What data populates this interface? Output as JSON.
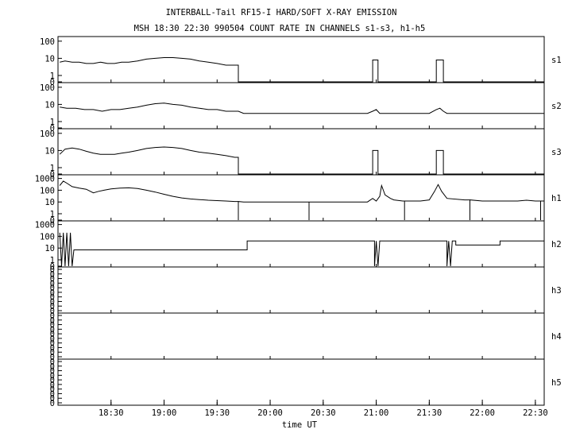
{
  "chart_data": {
    "type": "line",
    "title": "INTERBALL-Tail RF15-I HARD/SOFT X-RAY EMISSION",
    "subtitle": "MSH 18:30 22:30 990504  COUNT RATE IN CHANNELS s1-s3, h1-h5",
    "xlabel": "time UT",
    "x_range_minutes": [
      1080,
      1355
    ],
    "x_ticks": [
      "18:30",
      "19:00",
      "19:30",
      "20:00",
      "20:30",
      "21:00",
      "21:30",
      "22:00",
      "22:30"
    ],
    "x_tick_values": [
      1110,
      1140,
      1170,
      1200,
      1230,
      1260,
      1290,
      1320,
      1350
    ],
    "scale": "log",
    "panels": [
      {
        "name": "s1",
        "y_ticks": [
          "100",
          "10",
          "1",
          "0"
        ],
        "y_tick_values": [
          100,
          10,
          1,
          0
        ],
        "ylim": [
          0,
          150
        ],
        "points": [
          [
            1081,
            6
          ],
          [
            1084,
            7
          ],
          [
            1088,
            6
          ],
          [
            1092,
            6
          ],
          [
            1096,
            5
          ],
          [
            1100,
            5
          ],
          [
            1104,
            6
          ],
          [
            1108,
            5
          ],
          [
            1112,
            5
          ],
          [
            1116,
            6
          ],
          [
            1120,
            6
          ],
          [
            1125,
            7
          ],
          [
            1130,
            9
          ],
          [
            1135,
            10
          ],
          [
            1140,
            11
          ],
          [
            1145,
            11
          ],
          [
            1150,
            10
          ],
          [
            1155,
            9
          ],
          [
            1160,
            7
          ],
          [
            1165,
            6
          ],
          [
            1170,
            5
          ],
          [
            1175,
            4
          ],
          [
            1180,
            4
          ],
          [
            1182,
            4
          ],
          [
            1182,
            0
          ],
          [
            1258,
            0
          ],
          [
            1258,
            8
          ],
          [
            1261,
            8
          ],
          [
            1261,
            0
          ],
          [
            1294,
            0
          ],
          [
            1294,
            8
          ],
          [
            1298,
            8
          ],
          [
            1298,
            0
          ],
          [
            1355,
            0
          ]
        ]
      },
      {
        "name": "s2",
        "y_ticks": [
          "100",
          "10",
          "1",
          "0"
        ],
        "y_tick_values": [
          100,
          10,
          1,
          0
        ],
        "ylim": [
          0,
          150
        ],
        "points": [
          [
            1081,
            7
          ],
          [
            1085,
            6
          ],
          [
            1090,
            6
          ],
          [
            1095,
            5
          ],
          [
            1100,
            5
          ],
          [
            1105,
            4
          ],
          [
            1110,
            5
          ],
          [
            1115,
            5
          ],
          [
            1120,
            6
          ],
          [
            1125,
            7
          ],
          [
            1130,
            9
          ],
          [
            1135,
            11
          ],
          [
            1140,
            12
          ],
          [
            1145,
            10
          ],
          [
            1150,
            9
          ],
          [
            1155,
            7
          ],
          [
            1160,
            6
          ],
          [
            1165,
            5
          ],
          [
            1170,
            5
          ],
          [
            1175,
            4
          ],
          [
            1180,
            4
          ],
          [
            1182,
            4
          ],
          [
            1185,
            3
          ],
          [
            1200,
            3
          ],
          [
            1220,
            3
          ],
          [
            1240,
            3
          ],
          [
            1255,
            3
          ],
          [
            1258,
            4
          ],
          [
            1260,
            5
          ],
          [
            1262,
            3
          ],
          [
            1290,
            3
          ],
          [
            1294,
            5
          ],
          [
            1296,
            6
          ],
          [
            1298,
            4
          ],
          [
            1300,
            3
          ],
          [
            1320,
            3
          ],
          [
            1340,
            3
          ],
          [
            1355,
            3
          ]
        ]
      },
      {
        "name": "s3",
        "y_ticks": [
          "100",
          "10",
          "1",
          "0"
        ],
        "y_tick_values": [
          100,
          10,
          1,
          0
        ],
        "ylim": [
          0,
          150
        ],
        "points": [
          [
            1081,
            6
          ],
          [
            1084,
            12
          ],
          [
            1088,
            14
          ],
          [
            1092,
            12
          ],
          [
            1096,
            9
          ],
          [
            1100,
            7
          ],
          [
            1104,
            6
          ],
          [
            1108,
            6
          ],
          [
            1112,
            6
          ],
          [
            1116,
            7
          ],
          [
            1120,
            8
          ],
          [
            1125,
            10
          ],
          [
            1130,
            13
          ],
          [
            1135,
            15
          ],
          [
            1140,
            16
          ],
          [
            1145,
            15
          ],
          [
            1150,
            13
          ],
          [
            1155,
            10
          ],
          [
            1160,
            8
          ],
          [
            1165,
            7
          ],
          [
            1170,
            6
          ],
          [
            1175,
            5
          ],
          [
            1180,
            4
          ],
          [
            1182,
            4
          ],
          [
            1182,
            0
          ],
          [
            1258,
            0
          ],
          [
            1258,
            10
          ],
          [
            1261,
            10
          ],
          [
            1261,
            0
          ],
          [
            1294,
            0
          ],
          [
            1294,
            10
          ],
          [
            1298,
            10
          ],
          [
            1298,
            0
          ],
          [
            1355,
            0
          ]
        ]
      },
      {
        "name": "h1",
        "y_ticks": [
          "1000",
          "100",
          "10",
          "1",
          "0"
        ],
        "y_tick_values": [
          1000,
          100,
          10,
          1,
          0
        ],
        "ylim": [
          0,
          1500
        ],
        "points": [
          [
            1081,
            250
          ],
          [
            1083,
            600
          ],
          [
            1085,
            400
          ],
          [
            1088,
            200
          ],
          [
            1092,
            150
          ],
          [
            1096,
            120
          ],
          [
            1100,
            60
          ],
          [
            1103,
            80
          ],
          [
            1106,
            100
          ],
          [
            1110,
            130
          ],
          [
            1115,
            150
          ],
          [
            1120,
            160
          ],
          [
            1125,
            140
          ],
          [
            1130,
            100
          ],
          [
            1135,
            70
          ],
          [
            1140,
            45
          ],
          [
            1145,
            30
          ],
          [
            1150,
            22
          ],
          [
            1155,
            18
          ],
          [
            1160,
            16
          ],
          [
            1165,
            14
          ],
          [
            1170,
            13
          ],
          [
            1175,
            12
          ],
          [
            1180,
            11
          ],
          [
            1182,
            11
          ],
          [
            1182,
            0
          ],
          [
            1182,
            11
          ],
          [
            1185,
            10
          ],
          [
            1200,
            10
          ],
          [
            1220,
            10
          ],
          [
            1222,
            10
          ],
          [
            1222,
            0
          ],
          [
            1222,
            10
          ],
          [
            1240,
            10
          ],
          [
            1255,
            10
          ],
          [
            1258,
            20
          ],
          [
            1260,
            12
          ],
          [
            1262,
            30
          ],
          [
            1263,
            250
          ],
          [
            1265,
            40
          ],
          [
            1268,
            20
          ],
          [
            1270,
            15
          ],
          [
            1275,
            12
          ],
          [
            1276,
            12
          ],
          [
            1276,
            0
          ],
          [
            1276,
            12
          ],
          [
            1285,
            12
          ],
          [
            1290,
            15
          ],
          [
            1293,
            80
          ],
          [
            1295,
            300
          ],
          [
            1297,
            80
          ],
          [
            1300,
            20
          ],
          [
            1310,
            15
          ],
          [
            1313,
            15
          ],
          [
            1313,
            0
          ],
          [
            1313,
            15
          ],
          [
            1320,
            12
          ],
          [
            1330,
            12
          ],
          [
            1340,
            12
          ],
          [
            1345,
            14
          ],
          [
            1350,
            12
          ],
          [
            1353,
            12
          ],
          [
            1353,
            0
          ],
          [
            1353,
            12
          ],
          [
            1355,
            12
          ]
        ]
      },
      {
        "name": "h2",
        "y_ticks": [
          "1000",
          "100",
          "10",
          "1",
          "0"
        ],
        "y_tick_values": [
          1000,
          100,
          10,
          1,
          0
        ],
        "ylim": [
          0,
          1500
        ],
        "points": [
          [
            1081,
            200
          ],
          [
            1082,
            0
          ],
          [
            1083,
            200
          ],
          [
            1084,
            0
          ],
          [
            1085,
            200
          ],
          [
            1086,
            0
          ],
          [
            1087,
            200
          ],
          [
            1088,
            0
          ],
          [
            1089,
            7
          ],
          [
            1187,
            7
          ],
          [
            1187,
            40
          ],
          [
            1259,
            40
          ],
          [
            1259,
            0
          ],
          [
            1260,
            40
          ],
          [
            1261,
            0
          ],
          [
            1262,
            40
          ],
          [
            1300,
            40
          ],
          [
            1300,
            0
          ],
          [
            1301,
            40
          ],
          [
            1302,
            0
          ],
          [
            1303,
            40
          ],
          [
            1305,
            40
          ],
          [
            1305,
            18
          ],
          [
            1330,
            18
          ],
          [
            1330,
            40
          ],
          [
            1355,
            40
          ]
        ]
      },
      {
        "name": "h3",
        "y_ticks": [
          "0",
          "0",
          "0",
          "0",
          "0",
          "0",
          "0",
          "0",
          "0",
          "0"
        ],
        "y_tick_values": [],
        "ylim": [
          0,
          1
        ],
        "points": []
      },
      {
        "name": "h4",
        "y_ticks": [
          "0",
          "0",
          "0",
          "0",
          "0",
          "0",
          "0",
          "0",
          "0",
          "0"
        ],
        "y_tick_values": [],
        "ylim": [
          0,
          1
        ],
        "points": []
      },
      {
        "name": "h5",
        "y_ticks": [
          "0",
          "0",
          "0",
          "0",
          "0",
          "0",
          "0",
          "0",
          "0",
          "0"
        ],
        "y_tick_values": [],
        "ylim": [
          0,
          1
        ],
        "points": []
      }
    ],
    "grid": false,
    "legend": "none"
  }
}
